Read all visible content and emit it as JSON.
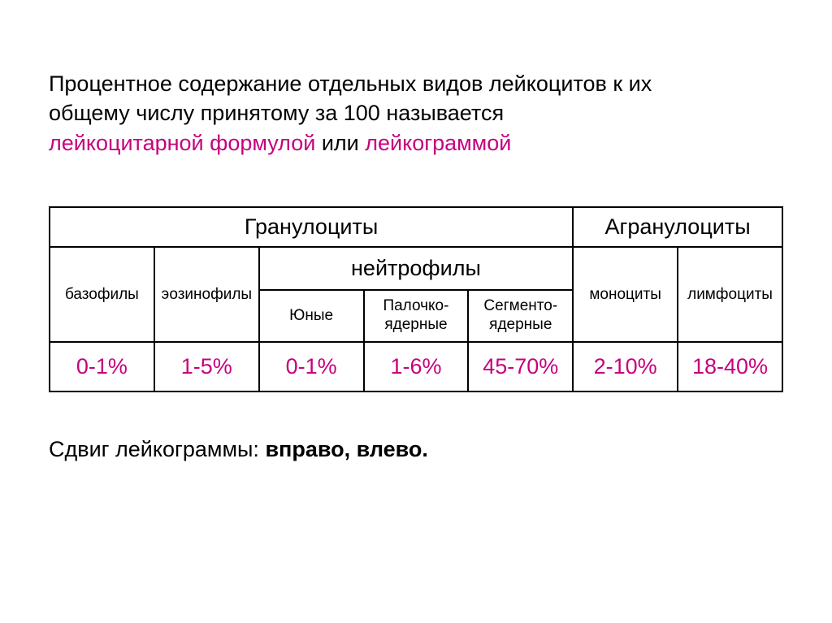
{
  "description": {
    "line1": "Процентное содержание отдельных видов лейкоцитов к их",
    "line2": "общему числу принятому за 100 называется",
    "line3_part1": "лейкоцитарной формулой",
    "line3_part2": " или ",
    "line3_part3": "лейкограммой"
  },
  "table": {
    "group1": "Гранулоциты",
    "group2": "Агранулоциты",
    "cells": {
      "basophils": "базофилы",
      "eosinophils": "эозинофилы",
      "neutrophils": "нейтрофилы",
      "monocytes": "моноциты",
      "lymphocytes": "лимфоциты",
      "young": "Юные",
      "band": "Палочко-ядерные",
      "segmented": "Сегменто-ядерные"
    },
    "values": {
      "basophils": "0-1%",
      "eosinophils": "1-5%",
      "young": "0-1%",
      "band": "1-6%",
      "segmented": "45-70%",
      "monocytes": "2-10%",
      "lymphocytes": "18-40%"
    }
  },
  "footer": {
    "prefix": "Сдвиг лейкограммы: ",
    "bold": "вправо, влево."
  },
  "colors": {
    "highlight": "#c6007e",
    "text": "#000000",
    "border": "#000000",
    "background": "#ffffff"
  },
  "typography": {
    "body_fontsize": 27,
    "small_fontsize": 19,
    "font_family": "Arial"
  }
}
